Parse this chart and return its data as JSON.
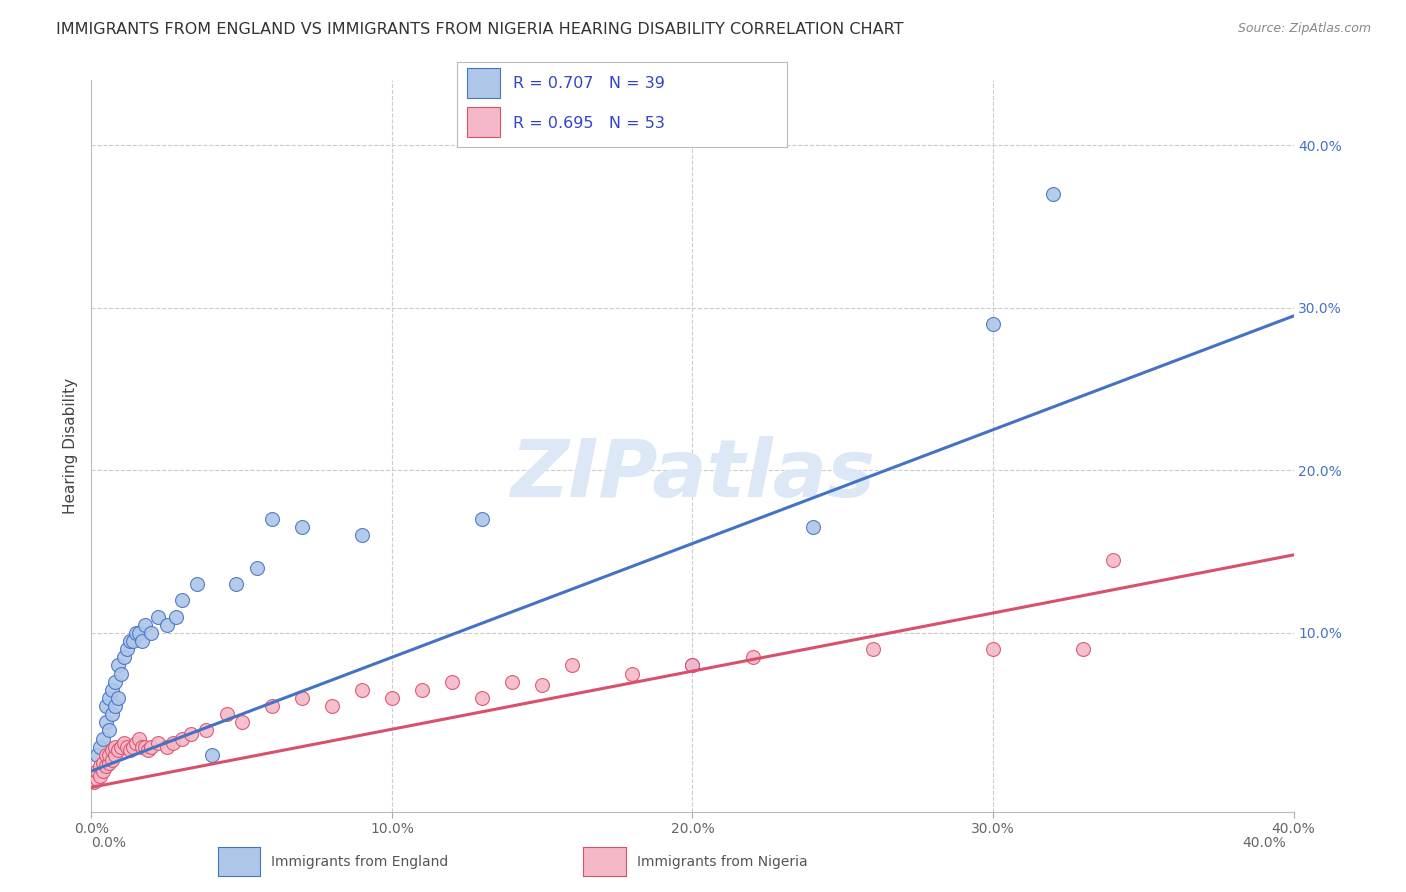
{
  "title": "IMMIGRANTS FROM ENGLAND VS IMMIGRANTS FROM NIGERIA HEARING DISABILITY CORRELATION CHART",
  "source": "Source: ZipAtlas.com",
  "ylabel": "Hearing Disability",
  "x_min": 0.0,
  "x_max": 0.4,
  "y_min": -0.01,
  "y_max": 0.44,
  "england_color": "#aec6e8",
  "england_edge_color": "#4472c4",
  "nigeria_color": "#f5b8c8",
  "nigeria_edge_color": "#d9506a",
  "england_R": "0.707",
  "england_N": "39",
  "nigeria_R": "0.695",
  "nigeria_N": "53",
  "england_line_x0": 0.0,
  "england_line_x1": 0.4,
  "england_line_y0": 0.015,
  "england_line_y1": 0.295,
  "nigeria_line_x0": 0.0,
  "nigeria_line_x1": 0.4,
  "nigeria_line_y0": 0.005,
  "nigeria_line_y1": 0.148,
  "england_scatter_x": [
    0.002,
    0.003,
    0.004,
    0.005,
    0.005,
    0.006,
    0.006,
    0.007,
    0.007,
    0.008,
    0.008,
    0.009,
    0.009,
    0.01,
    0.011,
    0.012,
    0.013,
    0.014,
    0.015,
    0.016,
    0.017,
    0.018,
    0.02,
    0.022,
    0.025,
    0.028,
    0.03,
    0.035,
    0.04,
    0.048,
    0.055,
    0.06,
    0.07,
    0.09,
    0.13,
    0.2,
    0.24,
    0.3,
    0.32
  ],
  "england_scatter_y": [
    0.025,
    0.03,
    0.035,
    0.045,
    0.055,
    0.04,
    0.06,
    0.05,
    0.065,
    0.055,
    0.07,
    0.06,
    0.08,
    0.075,
    0.085,
    0.09,
    0.095,
    0.095,
    0.1,
    0.1,
    0.095,
    0.105,
    0.1,
    0.11,
    0.105,
    0.11,
    0.12,
    0.13,
    0.025,
    0.13,
    0.14,
    0.17,
    0.165,
    0.16,
    0.17,
    0.08,
    0.165,
    0.29,
    0.37
  ],
  "nigeria_scatter_x": [
    0.001,
    0.002,
    0.002,
    0.003,
    0.003,
    0.004,
    0.004,
    0.005,
    0.005,
    0.006,
    0.006,
    0.007,
    0.007,
    0.008,
    0.008,
    0.009,
    0.01,
    0.011,
    0.012,
    0.013,
    0.014,
    0.015,
    0.016,
    0.017,
    0.018,
    0.019,
    0.02,
    0.022,
    0.025,
    0.027,
    0.03,
    0.033,
    0.038,
    0.045,
    0.05,
    0.06,
    0.07,
    0.08,
    0.09,
    0.1,
    0.11,
    0.12,
    0.13,
    0.14,
    0.15,
    0.16,
    0.18,
    0.2,
    0.22,
    0.26,
    0.3,
    0.33,
    0.34
  ],
  "nigeria_scatter_y": [
    0.008,
    0.01,
    0.015,
    0.012,
    0.018,
    0.015,
    0.02,
    0.018,
    0.025,
    0.02,
    0.025,
    0.022,
    0.028,
    0.025,
    0.03,
    0.028,
    0.03,
    0.032,
    0.03,
    0.028,
    0.03,
    0.032,
    0.035,
    0.03,
    0.03,
    0.028,
    0.03,
    0.032,
    0.03,
    0.032,
    0.035,
    0.038,
    0.04,
    0.05,
    0.045,
    0.055,
    0.06,
    0.055,
    0.065,
    0.06,
    0.065,
    0.07,
    0.06,
    0.07,
    0.068,
    0.08,
    0.075,
    0.08,
    0.085,
    0.09,
    0.09,
    0.09,
    0.145
  ],
  "background_color": "#ffffff",
  "grid_color": "#cccccc",
  "title_color": "#333333",
  "right_axis_color": "#4472c4",
  "watermark_color": "#dce8f5"
}
